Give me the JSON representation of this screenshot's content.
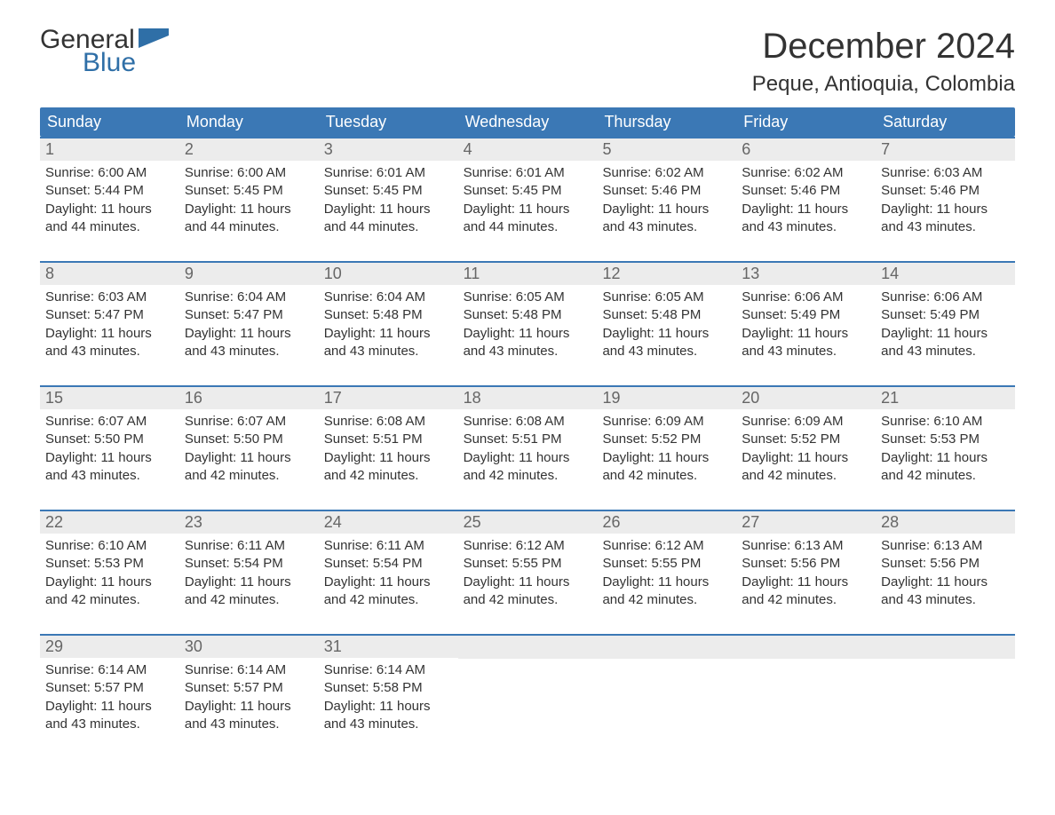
{
  "logo": {
    "word1": "General",
    "word2": "Blue",
    "accent_color": "#2f6fa7"
  },
  "title": "December 2024",
  "location": "Peque, Antioquia, Colombia",
  "colors": {
    "header_bg": "#3b78b5",
    "header_text": "#ffffff",
    "daynum_bg": "#ececec",
    "daynum_text": "#666666",
    "body_text": "#333333",
    "row_border": "#3b78b5",
    "page_bg": "#ffffff"
  },
  "typography": {
    "title_fontsize": 40,
    "location_fontsize": 24,
    "dayheader_fontsize": 18,
    "daynum_fontsize": 18,
    "body_fontsize": 15
  },
  "day_headers": [
    "Sunday",
    "Monday",
    "Tuesday",
    "Wednesday",
    "Thursday",
    "Friday",
    "Saturday"
  ],
  "labels": {
    "sunrise": "Sunrise:",
    "sunset": "Sunset:",
    "daylight": "Daylight:"
  },
  "weeks": [
    [
      {
        "n": "1",
        "sunrise": "6:00 AM",
        "sunset": "5:44 PM",
        "daylight_l1": "11 hours",
        "daylight_l2": "and 44 minutes."
      },
      {
        "n": "2",
        "sunrise": "6:00 AM",
        "sunset": "5:45 PM",
        "daylight_l1": "11 hours",
        "daylight_l2": "and 44 minutes."
      },
      {
        "n": "3",
        "sunrise": "6:01 AM",
        "sunset": "5:45 PM",
        "daylight_l1": "11 hours",
        "daylight_l2": "and 44 minutes."
      },
      {
        "n": "4",
        "sunrise": "6:01 AM",
        "sunset": "5:45 PM",
        "daylight_l1": "11 hours",
        "daylight_l2": "and 44 minutes."
      },
      {
        "n": "5",
        "sunrise": "6:02 AM",
        "sunset": "5:46 PM",
        "daylight_l1": "11 hours",
        "daylight_l2": "and 43 minutes."
      },
      {
        "n": "6",
        "sunrise": "6:02 AM",
        "sunset": "5:46 PM",
        "daylight_l1": "11 hours",
        "daylight_l2": "and 43 minutes."
      },
      {
        "n": "7",
        "sunrise": "6:03 AM",
        "sunset": "5:46 PM",
        "daylight_l1": "11 hours",
        "daylight_l2": "and 43 minutes."
      }
    ],
    [
      {
        "n": "8",
        "sunrise": "6:03 AM",
        "sunset": "5:47 PM",
        "daylight_l1": "11 hours",
        "daylight_l2": "and 43 minutes."
      },
      {
        "n": "9",
        "sunrise": "6:04 AM",
        "sunset": "5:47 PM",
        "daylight_l1": "11 hours",
        "daylight_l2": "and 43 minutes."
      },
      {
        "n": "10",
        "sunrise": "6:04 AM",
        "sunset": "5:48 PM",
        "daylight_l1": "11 hours",
        "daylight_l2": "and 43 minutes."
      },
      {
        "n": "11",
        "sunrise": "6:05 AM",
        "sunset": "5:48 PM",
        "daylight_l1": "11 hours",
        "daylight_l2": "and 43 minutes."
      },
      {
        "n": "12",
        "sunrise": "6:05 AM",
        "sunset": "5:48 PM",
        "daylight_l1": "11 hours",
        "daylight_l2": "and 43 minutes."
      },
      {
        "n": "13",
        "sunrise": "6:06 AM",
        "sunset": "5:49 PM",
        "daylight_l1": "11 hours",
        "daylight_l2": "and 43 minutes."
      },
      {
        "n": "14",
        "sunrise": "6:06 AM",
        "sunset": "5:49 PM",
        "daylight_l1": "11 hours",
        "daylight_l2": "and 43 minutes."
      }
    ],
    [
      {
        "n": "15",
        "sunrise": "6:07 AM",
        "sunset": "5:50 PM",
        "daylight_l1": "11 hours",
        "daylight_l2": "and 43 minutes."
      },
      {
        "n": "16",
        "sunrise": "6:07 AM",
        "sunset": "5:50 PM",
        "daylight_l1": "11 hours",
        "daylight_l2": "and 42 minutes."
      },
      {
        "n": "17",
        "sunrise": "6:08 AM",
        "sunset": "5:51 PM",
        "daylight_l1": "11 hours",
        "daylight_l2": "and 42 minutes."
      },
      {
        "n": "18",
        "sunrise": "6:08 AM",
        "sunset": "5:51 PM",
        "daylight_l1": "11 hours",
        "daylight_l2": "and 42 minutes."
      },
      {
        "n": "19",
        "sunrise": "6:09 AM",
        "sunset": "5:52 PM",
        "daylight_l1": "11 hours",
        "daylight_l2": "and 42 minutes."
      },
      {
        "n": "20",
        "sunrise": "6:09 AM",
        "sunset": "5:52 PM",
        "daylight_l1": "11 hours",
        "daylight_l2": "and 42 minutes."
      },
      {
        "n": "21",
        "sunrise": "6:10 AM",
        "sunset": "5:53 PM",
        "daylight_l1": "11 hours",
        "daylight_l2": "and 42 minutes."
      }
    ],
    [
      {
        "n": "22",
        "sunrise": "6:10 AM",
        "sunset": "5:53 PM",
        "daylight_l1": "11 hours",
        "daylight_l2": "and 42 minutes."
      },
      {
        "n": "23",
        "sunrise": "6:11 AM",
        "sunset": "5:54 PM",
        "daylight_l1": "11 hours",
        "daylight_l2": "and 42 minutes."
      },
      {
        "n": "24",
        "sunrise": "6:11 AM",
        "sunset": "5:54 PM",
        "daylight_l1": "11 hours",
        "daylight_l2": "and 42 minutes."
      },
      {
        "n": "25",
        "sunrise": "6:12 AM",
        "sunset": "5:55 PM",
        "daylight_l1": "11 hours",
        "daylight_l2": "and 42 minutes."
      },
      {
        "n": "26",
        "sunrise": "6:12 AM",
        "sunset": "5:55 PM",
        "daylight_l1": "11 hours",
        "daylight_l2": "and 42 minutes."
      },
      {
        "n": "27",
        "sunrise": "6:13 AM",
        "sunset": "5:56 PM",
        "daylight_l1": "11 hours",
        "daylight_l2": "and 42 minutes."
      },
      {
        "n": "28",
        "sunrise": "6:13 AM",
        "sunset": "5:56 PM",
        "daylight_l1": "11 hours",
        "daylight_l2": "and 43 minutes."
      }
    ],
    [
      {
        "n": "29",
        "sunrise": "6:14 AM",
        "sunset": "5:57 PM",
        "daylight_l1": "11 hours",
        "daylight_l2": "and 43 minutes."
      },
      {
        "n": "30",
        "sunrise": "6:14 AM",
        "sunset": "5:57 PM",
        "daylight_l1": "11 hours",
        "daylight_l2": "and 43 minutes."
      },
      {
        "n": "31",
        "sunrise": "6:14 AM",
        "sunset": "5:58 PM",
        "daylight_l1": "11 hours",
        "daylight_l2": "and 43 minutes."
      },
      null,
      null,
      null,
      null
    ]
  ]
}
